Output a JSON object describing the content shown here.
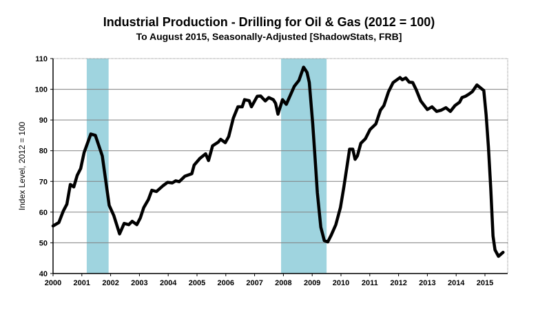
{
  "chart_data": {
    "type": "line",
    "title": "Industrial Production - Drilling for Oil & Gas (2012 = 100)",
    "subtitle": "To August 2015, Seasonally-Adjusted [ShadowStats, FRB]",
    "xlabel": "",
    "ylabel": "Index Level, 2012 = 100",
    "xlim": [
      2000,
      2015.77
    ],
    "ylim": [
      40,
      110
    ],
    "xticks": [
      "2000",
      "2001",
      "2002",
      "2003",
      "2004",
      "2005",
      "2006",
      "2007",
      "2008",
      "2009",
      "2010",
      "2011",
      "2012",
      "2013",
      "2014",
      "2015"
    ],
    "yticks": [
      "40",
      "50",
      "60",
      "70",
      "80",
      "90",
      "100",
      "110"
    ],
    "grid": true,
    "colors": {
      "line": "#000000",
      "recession": "#9fd4df",
      "grid": "#808080"
    },
    "recessions": [
      [
        2001.17,
        2001.93
      ],
      [
        2007.92,
        2009.5
      ]
    ],
    "series": [
      {
        "name": "Drilling for Oil & Gas",
        "points": [
          [
            2000.0,
            55.5
          ],
          [
            2000.2,
            56.6
          ],
          [
            2000.36,
            60.4
          ],
          [
            2000.48,
            62.6
          ],
          [
            2000.6,
            69
          ],
          [
            2000.72,
            68.2
          ],
          [
            2000.84,
            72
          ],
          [
            2000.96,
            74.2
          ],
          [
            2001.08,
            79.4
          ],
          [
            2001.31,
            85.4
          ],
          [
            2001.47,
            85
          ],
          [
            2001.71,
            78.3
          ],
          [
            2001.95,
            62.2
          ],
          [
            2002.11,
            58.9
          ],
          [
            2002.31,
            52.9
          ],
          [
            2002.47,
            56.3
          ],
          [
            2002.63,
            55.9
          ],
          [
            2002.75,
            57
          ],
          [
            2002.91,
            55.9
          ],
          [
            2003.03,
            58.1
          ],
          [
            2003.15,
            61.5
          ],
          [
            2003.31,
            64.1
          ],
          [
            2003.43,
            67.1
          ],
          [
            2003.59,
            66.7
          ],
          [
            2003.82,
            68.6
          ],
          [
            2003.98,
            69.7
          ],
          [
            2004.14,
            69.5
          ],
          [
            2004.26,
            70.2
          ],
          [
            2004.38,
            69.9
          ],
          [
            2004.58,
            71.7
          ],
          [
            2004.82,
            72.5
          ],
          [
            2004.9,
            75.3
          ],
          [
            2005.1,
            77.5
          ],
          [
            2005.3,
            79
          ],
          [
            2005.4,
            76.8
          ],
          [
            2005.54,
            81.6
          ],
          [
            2005.74,
            82.8
          ],
          [
            2005.82,
            83.7
          ],
          [
            2005.98,
            82.6
          ],
          [
            2006.1,
            84.6
          ],
          [
            2006.26,
            90.6
          ],
          [
            2006.42,
            94.3
          ],
          [
            2006.57,
            94.3
          ],
          [
            2006.65,
            96.6
          ],
          [
            2006.81,
            96.3
          ],
          [
            2006.89,
            94.3
          ],
          [
            2007.09,
            97.7
          ],
          [
            2007.21,
            97.8
          ],
          [
            2007.37,
            96.2
          ],
          [
            2007.49,
            97.3
          ],
          [
            2007.65,
            96.6
          ],
          [
            2007.73,
            95.4
          ],
          [
            2007.81,
            91.9
          ],
          [
            2007.97,
            96.6
          ],
          [
            2008.1,
            95.1
          ],
          [
            2008.38,
            101
          ],
          [
            2008.54,
            102.9
          ],
          [
            2008.7,
            107.2
          ],
          [
            2008.82,
            105.5
          ],
          [
            2008.9,
            102.2
          ],
          [
            2009.02,
            88.7
          ],
          [
            2009.1,
            77.5
          ],
          [
            2009.18,
            66.3
          ],
          [
            2009.3,
            55.1
          ],
          [
            2009.42,
            50.7
          ],
          [
            2009.54,
            50.3
          ],
          [
            2009.66,
            52.5
          ],
          [
            2009.82,
            55.9
          ],
          [
            2009.98,
            61.5
          ],
          [
            2010.1,
            68.2
          ],
          [
            2010.3,
            80.5
          ],
          [
            2010.41,
            80.5
          ],
          [
            2010.49,
            77.2
          ],
          [
            2010.57,
            78.3
          ],
          [
            2010.69,
            82.4
          ],
          [
            2010.85,
            83.9
          ],
          [
            2011.01,
            86.9
          ],
          [
            2011.21,
            88.7
          ],
          [
            2011.37,
            93.2
          ],
          [
            2011.49,
            94.7
          ],
          [
            2011.65,
            99.2
          ],
          [
            2011.81,
            102.2
          ],
          [
            2012.05,
            103.8
          ],
          [
            2012.13,
            103.1
          ],
          [
            2012.25,
            103.7
          ],
          [
            2012.37,
            102.3
          ],
          [
            2012.49,
            102.2
          ],
          [
            2012.61,
            99.9
          ],
          [
            2012.77,
            96.2
          ],
          [
            2013.0,
            93.4
          ],
          [
            2013.16,
            94.3
          ],
          [
            2013.32,
            92.8
          ],
          [
            2013.48,
            93.2
          ],
          [
            2013.64,
            94
          ],
          [
            2013.8,
            92.8
          ],
          [
            2013.96,
            94.7
          ],
          [
            2014.12,
            95.8
          ],
          [
            2014.2,
            97.3
          ],
          [
            2014.32,
            97.7
          ],
          [
            2014.44,
            98.4
          ],
          [
            2014.56,
            99.2
          ],
          [
            2014.72,
            101.4
          ],
          [
            2014.96,
            99.6
          ],
          [
            2015.04,
            91.7
          ],
          [
            2015.12,
            81.3
          ],
          [
            2015.2,
            67.8
          ],
          [
            2015.28,
            52.2
          ],
          [
            2015.35,
            47.7
          ],
          [
            2015.47,
            45.6
          ],
          [
            2015.63,
            46.9
          ]
        ]
      }
    ]
  }
}
